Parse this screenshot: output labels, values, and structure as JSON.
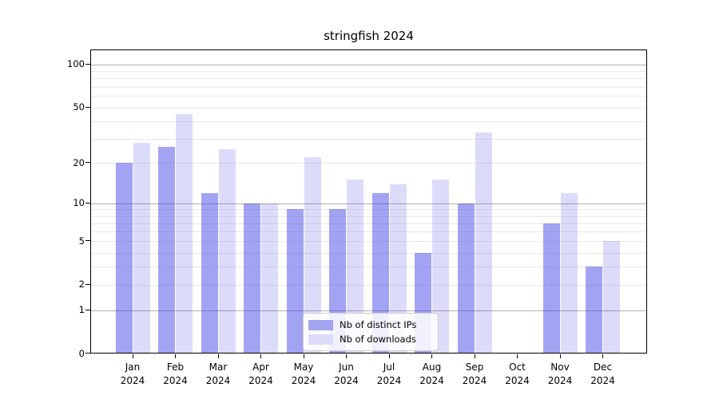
{
  "title": "stringfish 2024",
  "chart_data": {
    "type": "bar",
    "title": "stringfish 2024",
    "categories": [
      "Jan 2024",
      "Feb 2024",
      "Mar 2024",
      "Apr 2024",
      "May 2024",
      "Jun 2024",
      "Jul 2024",
      "Aug 2024",
      "Sep 2024",
      "Oct 2024",
      "Nov 2024",
      "Dec 2024"
    ],
    "series": [
      {
        "name": "Nb of distinct IPs",
        "color": "rgba(60,60,230,0.47)",
        "color_hex": "#a3a3f0",
        "values": [
          20,
          26,
          12,
          10,
          9,
          9,
          12,
          4,
          10,
          0,
          7,
          3
        ]
      },
      {
        "name": "Nb of downloads",
        "color": "rgba(60,60,230,0.18)",
        "color_hex": "#dcdcfa",
        "values": [
          28,
          45,
          25,
          10,
          22,
          15,
          14,
          15,
          33,
          0,
          12,
          5
        ]
      }
    ],
    "xlabel": "",
    "ylabel": "",
    "yscale": "log1p",
    "ylim": [
      0,
      128
    ],
    "y_ticks": [
      0,
      1,
      2,
      5,
      10,
      20,
      50,
      100
    ],
    "y_major_gridlines": [
      1,
      10,
      100
    ],
    "y_minor_gridlines": [
      2,
      3,
      4,
      5,
      6,
      7,
      8,
      9,
      20,
      30,
      40,
      50,
      60,
      70,
      80,
      90
    ],
    "grid": true,
    "legend_position": "lower center"
  },
  "colors": {
    "background": "#ffffff",
    "axis": "#000000",
    "major_grid": "#b0b0b0",
    "minor_grid": "#e8e8e8",
    "legend_border": "#cccccc",
    "legend_background": "rgba(255,255,255,0.85)"
  }
}
